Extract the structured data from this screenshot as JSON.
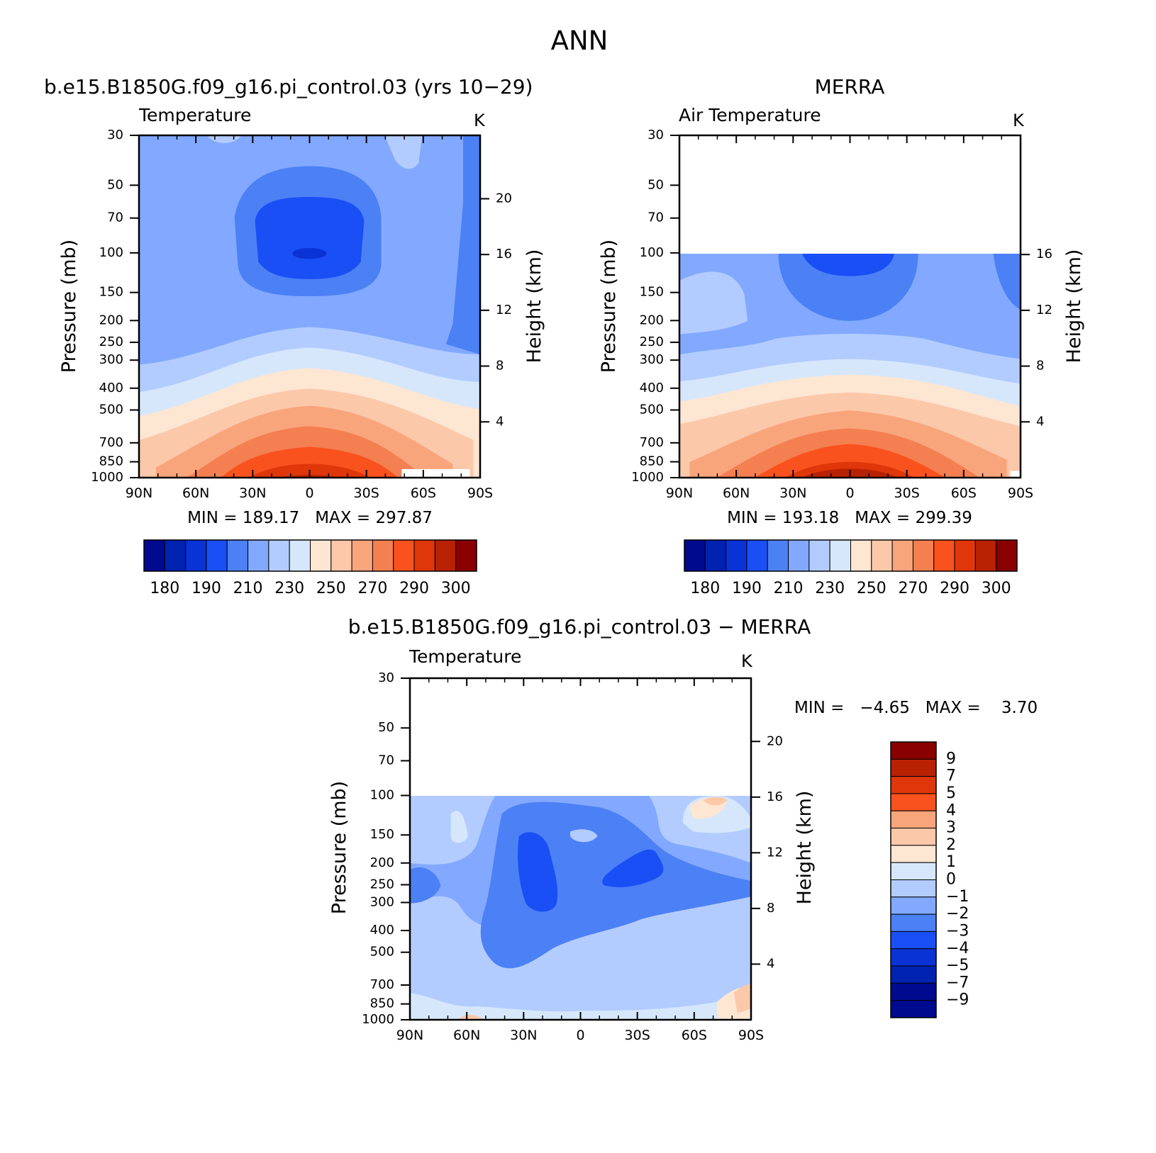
{
  "page_title": "ANN",
  "colors": {
    "abs_levels": [
      "#000a8f",
      "#0022b0",
      "#0a33d6",
      "#1a4ff5",
      "#4c80f5",
      "#82a9ff",
      "#b3ccff",
      "#d6e7fb",
      "#fde6d2",
      "#fcc8aa",
      "#f9a57c",
      "#f47f51",
      "#f9521e",
      "#df360a",
      "#b92103",
      "#8a0000"
    ],
    "diff_levels": [
      "#000a8f",
      "#0022b0",
      "#0a33d6",
      "#1a4ff5",
      "#4c80f5",
      "#82a9ff",
      "#b3ccff",
      "#d6e7fb",
      "#fde6d2",
      "#fcc8aa",
      "#f9a57c",
      "#f9521e",
      "#df360a",
      "#b92103",
      "#8a0000"
    ]
  },
  "chart_data": [
    {
      "type": "heatmap",
      "panel_title": "b.e15.B1850G.f09_g16.pi_control.03 (yrs 10−29)",
      "left_string": "Temperature",
      "units": "K",
      "xlabel": "",
      "ylabel": "Pressure (mb)",
      "right_ylabel": "Height (km)",
      "x_ticks": [
        "90N",
        "60N",
        "30N",
        "0",
        "30S",
        "60S",
        "90S"
      ],
      "y_ticks": [
        30,
        50,
        70,
        100,
        150,
        200,
        250,
        300,
        400,
        500,
        700,
        850,
        1000
      ],
      "right_ticks": [
        20,
        16,
        12,
        8,
        4
      ],
      "ylim": [
        1000,
        30
      ],
      "stats": "MIN = 189.17   MAX = 297.87",
      "colorbar": {
        "orientation": "horizontal",
        "levels": [
          175,
          180,
          185,
          190,
          200,
          210,
          220,
          230,
          240,
          250,
          260,
          270,
          280,
          290,
          295,
          300
        ],
        "labels": [
          "180",
          "190",
          "210",
          "230",
          "250",
          "270",
          "290",
          "300"
        ]
      }
    },
    {
      "type": "heatmap",
      "panel_title": "MERRA",
      "left_string": "Air Temperature",
      "units": "K",
      "xlabel": "",
      "ylabel": "Pressure (mb)",
      "right_ylabel": "Height (km)",
      "x_ticks": [
        "90N",
        "60N",
        "30N",
        "0",
        "30S",
        "60S",
        "90S"
      ],
      "y_ticks": [
        30,
        50,
        70,
        100,
        150,
        200,
        250,
        300,
        400,
        500,
        700,
        850,
        1000
      ],
      "right_ticks": [
        16,
        12,
        8,
        4
      ],
      "ylim": [
        1000,
        30
      ],
      "data_top": 100,
      "stats": "MIN = 193.18   MAX = 299.39",
      "colorbar": {
        "orientation": "horizontal",
        "levels": [
          175,
          180,
          185,
          190,
          200,
          210,
          220,
          230,
          240,
          250,
          260,
          270,
          280,
          290,
          295,
          300
        ],
        "labels": [
          "180",
          "190",
          "210",
          "230",
          "250",
          "270",
          "290",
          "300"
        ]
      }
    },
    {
      "type": "heatmap",
      "panel_title": "b.e15.B1850G.f09_g16.pi_control.03 − MERRA",
      "left_string": "Temperature",
      "units": "K",
      "xlabel": "",
      "ylabel": "Pressure (mb)",
      "right_ylabel": "Height (km)",
      "x_ticks": [
        "90N",
        "60N",
        "30N",
        "0",
        "30S",
        "60S",
        "90S"
      ],
      "y_ticks": [
        30,
        50,
        70,
        100,
        150,
        200,
        250,
        300,
        400,
        500,
        700,
        850,
        1000
      ],
      "right_ticks": [
        20,
        16,
        12,
        8,
        4
      ],
      "ylim": [
        1000,
        30
      ],
      "data_top": 100,
      "stats": "MIN =   −4.65   MAX =    3.70",
      "colorbar": {
        "orientation": "vertical",
        "levels": [
          -11,
          -9,
          -7,
          -5,
          -4,
          -3,
          -2,
          -1,
          0,
          1,
          2,
          3,
          4,
          5,
          7,
          9
        ],
        "labels": [
          "9",
          "7",
          "5",
          "4",
          "3",
          "2",
          "1",
          "0",
          "−1",
          "−2",
          "−3",
          "−4",
          "−5",
          "−7",
          "−9"
        ]
      }
    }
  ]
}
